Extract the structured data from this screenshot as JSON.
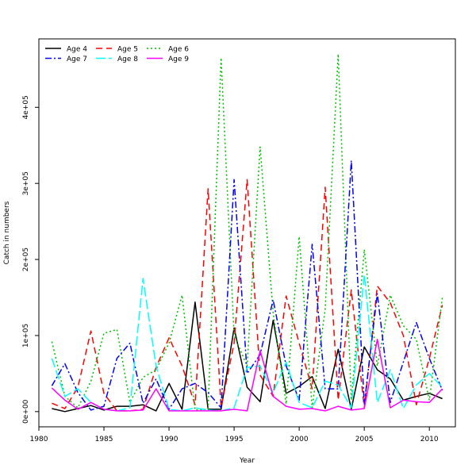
{
  "chart_data": {
    "type": "line",
    "title": "",
    "xlabel": "Year",
    "ylabel": "Catch in numbers",
    "xlim": [
      1980,
      2012
    ],
    "ylim": [
      -20000,
      490000
    ],
    "x_ticks": [
      1980,
      1985,
      1990,
      1995,
      2000,
      2005,
      2010
    ],
    "x_tick_labels": [
      "1980",
      "1985",
      "1990",
      "1995",
      "2000",
      "2005",
      "2010"
    ],
    "y_ticks": [
      0,
      100000,
      200000,
      300000,
      400000
    ],
    "y_tick_labels": [
      "0e+00",
      "1e+05",
      "2e+05",
      "3e+05",
      "4e+05"
    ],
    "grid": false,
    "legend_position": "top-left",
    "legend_columns": 3,
    "x": [
      1981,
      1982,
      1983,
      1984,
      1985,
      1986,
      1987,
      1988,
      1989,
      1990,
      1991,
      1992,
      1993,
      1994,
      1995,
      1996,
      1997,
      1998,
      1999,
      2000,
      2001,
      2002,
      2003,
      2004,
      2005,
      2006,
      2007,
      2008,
      2009,
      2010,
      2011
    ],
    "series": [
      {
        "name": "Age 4",
        "color": "#000000",
        "dash": "",
        "values": [
          4000,
          0,
          4000,
          8000,
          2000,
          7000,
          7000,
          9000,
          1000,
          37000,
          3000,
          144000,
          3000,
          3000,
          110000,
          32000,
          13000,
          120000,
          24000,
          33000,
          46000,
          4000,
          82000,
          3000,
          85000,
          55000,
          43000,
          15000,
          20000,
          24000,
          17000
        ]
      },
      {
        "name": "Age 5",
        "color": "#ff0000",
        "dash": "8,5",
        "values": [
          11000,
          4000,
          32000,
          106000,
          24000,
          1000,
          1000,
          3000,
          58000,
          97000,
          60000,
          9000,
          293000,
          6000,
          90000,
          305000,
          48000,
          20000,
          152000,
          90000,
          30000,
          295000,
          15000,
          160000,
          5000,
          165000,
          143000,
          100000,
          9000,
          70000,
          140000
        ]
      },
      {
        "name": "Age 6",
        "color": "#00c000",
        "dash": "2,3",
        "values": [
          92000,
          20000,
          5000,
          40000,
          103000,
          108000,
          12000,
          45000,
          55000,
          90000,
          153000,
          2000,
          3000,
          465000,
          100000,
          60000,
          348000,
          130000,
          10000,
          230000,
          5000,
          135000,
          470000,
          15000,
          213000,
          60000,
          153000,
          113000,
          95000,
          15000,
          150000
        ]
      },
      {
        "name": "Age 7",
        "color": "#0000ff",
        "dash": "8,3,2,3",
        "values": [
          34000,
          63000,
          25000,
          2000,
          7000,
          70000,
          90000,
          11000,
          43000,
          3000,
          30000,
          37000,
          25000,
          5000,
          305000,
          50000,
          75000,
          147000,
          60000,
          15000,
          220000,
          30000,
          30000,
          330000,
          10000,
          155000,
          12000,
          65000,
          117000,
          70000,
          28000
        ]
      },
      {
        "name": "Age 8",
        "color": "#00ffff",
        "dash": "12,4",
        "values": [
          70000,
          20000,
          30000,
          12000,
          3000,
          1000,
          5000,
          175000,
          60000,
          3000,
          1000,
          5000,
          2000,
          1000,
          5000,
          58000,
          60000,
          25000,
          65000,
          12000,
          5000,
          40000,
          35000,
          5000,
          180000,
          12000,
          55000,
          4000,
          35000,
          50000,
          32000
        ]
      },
      {
        "name": "Age 9",
        "color": "#ff00ff",
        "dash": "",
        "values": [
          31000,
          15000,
          3000,
          12000,
          3000,
          1000,
          1000,
          2000,
          30000,
          1000,
          1000,
          1000,
          1000,
          1000,
          3000,
          1000,
          80000,
          20000,
          7000,
          3000,
          4000,
          1000,
          7000,
          2000,
          4000,
          95000,
          5000,
          15000,
          13000,
          12000,
          30000
        ]
      }
    ]
  }
}
